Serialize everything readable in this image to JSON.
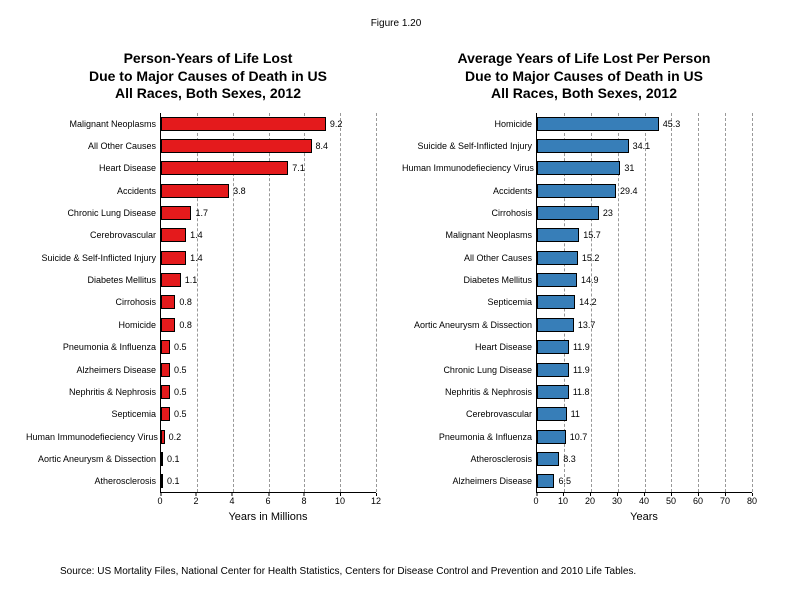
{
  "figure_label": "Figure 1.20",
  "left_chart": {
    "type": "bar",
    "title_line1": "Person-Years of Life Lost",
    "title_line2": "Due to Major Causes of Death in US",
    "title_line3": "All Races, Both Sexes, 2012",
    "bar_color": "#e41a1c",
    "xmax": 12,
    "xtick_step": 2,
    "xticks": [
      0,
      2,
      4,
      6,
      8,
      10,
      12
    ],
    "xlabel": "Years in Millions",
    "categories": [
      "Malignant Neoplasms",
      "All Other Causes",
      "Heart Disease",
      "Accidents",
      "Chronic Lung Disease",
      "Cerebrovascular",
      "Suicide & Self-Inflicted Injury",
      "Diabetes Mellitus",
      "Cirrohosis",
      "Homicide",
      "Pneumonia & Influenza",
      "Alzheimers Disease",
      "Nephritis & Nephrosis",
      "Septicemia",
      "Human Immunodefieciency Virus",
      "Aortic Aneurysm & Dissection",
      "Atherosclerosis"
    ],
    "values": [
      9.2,
      8.4,
      7.1,
      3.8,
      1.7,
      1.4,
      1.4,
      1.1,
      0.8,
      0.8,
      0.5,
      0.5,
      0.5,
      0.5,
      0.2,
      0.1,
      0.1
    ]
  },
  "right_chart": {
    "type": "bar",
    "title_line1": "Average Years of Life Lost Per Person",
    "title_line2": "Due to Major Causes of Death in US",
    "title_line3": "All Races, Both Sexes, 2012",
    "bar_color": "#377eb8",
    "xmax": 80,
    "xtick_step": 10,
    "xticks": [
      0,
      10,
      20,
      30,
      40,
      50,
      60,
      70,
      80
    ],
    "xlabel": "Years",
    "categories": [
      "Homicide",
      "Suicide & Self-Inflicted Injury",
      "Human Immunodefieciency Virus",
      "Accidents",
      "Cirrohosis",
      "Malignant Neoplasms",
      "All Other Causes",
      "Diabetes Mellitus",
      "Septicemia",
      "Aortic Aneurysm & Dissection",
      "Heart Disease",
      "Chronic Lung Disease",
      "Nephritis & Nephrosis",
      "Cerebrovascular",
      "Pneumonia & Influenza",
      "Atherosclerosis",
      "Alzheimers Disease"
    ],
    "values": [
      45.3,
      34.1,
      31,
      29.4,
      23,
      15.7,
      15.2,
      14.9,
      14.2,
      13.7,
      11.9,
      11.9,
      11.8,
      11,
      10.7,
      8.3,
      6.5
    ]
  },
  "source_note": "Source: US Mortality Files, National Center for Health Statistics, Centers for Disease Control and Prevention and 2010 Life Tables."
}
